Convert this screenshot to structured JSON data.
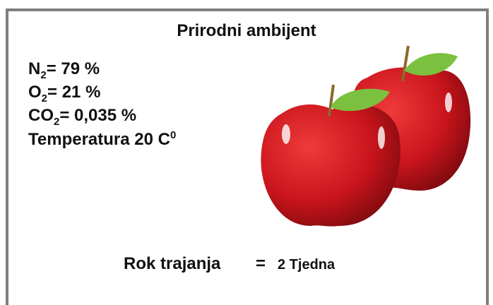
{
  "title": "Prirodni ambijent",
  "composition": [
    {
      "main": "N",
      "sub": "2",
      "rest": "= 79 %"
    },
    {
      "main": "O",
      "sub": "2",
      "rest": "= 21 %"
    },
    {
      "main": "CO",
      "sub": "2",
      "rest": "= 0,035 %"
    },
    {
      "main": "Temperatura 20 C",
      "sup": "0"
    }
  ],
  "shelf_life": {
    "label": "Rok trajanja",
    "equals": "=",
    "value": "2 Tjedna"
  }
}
